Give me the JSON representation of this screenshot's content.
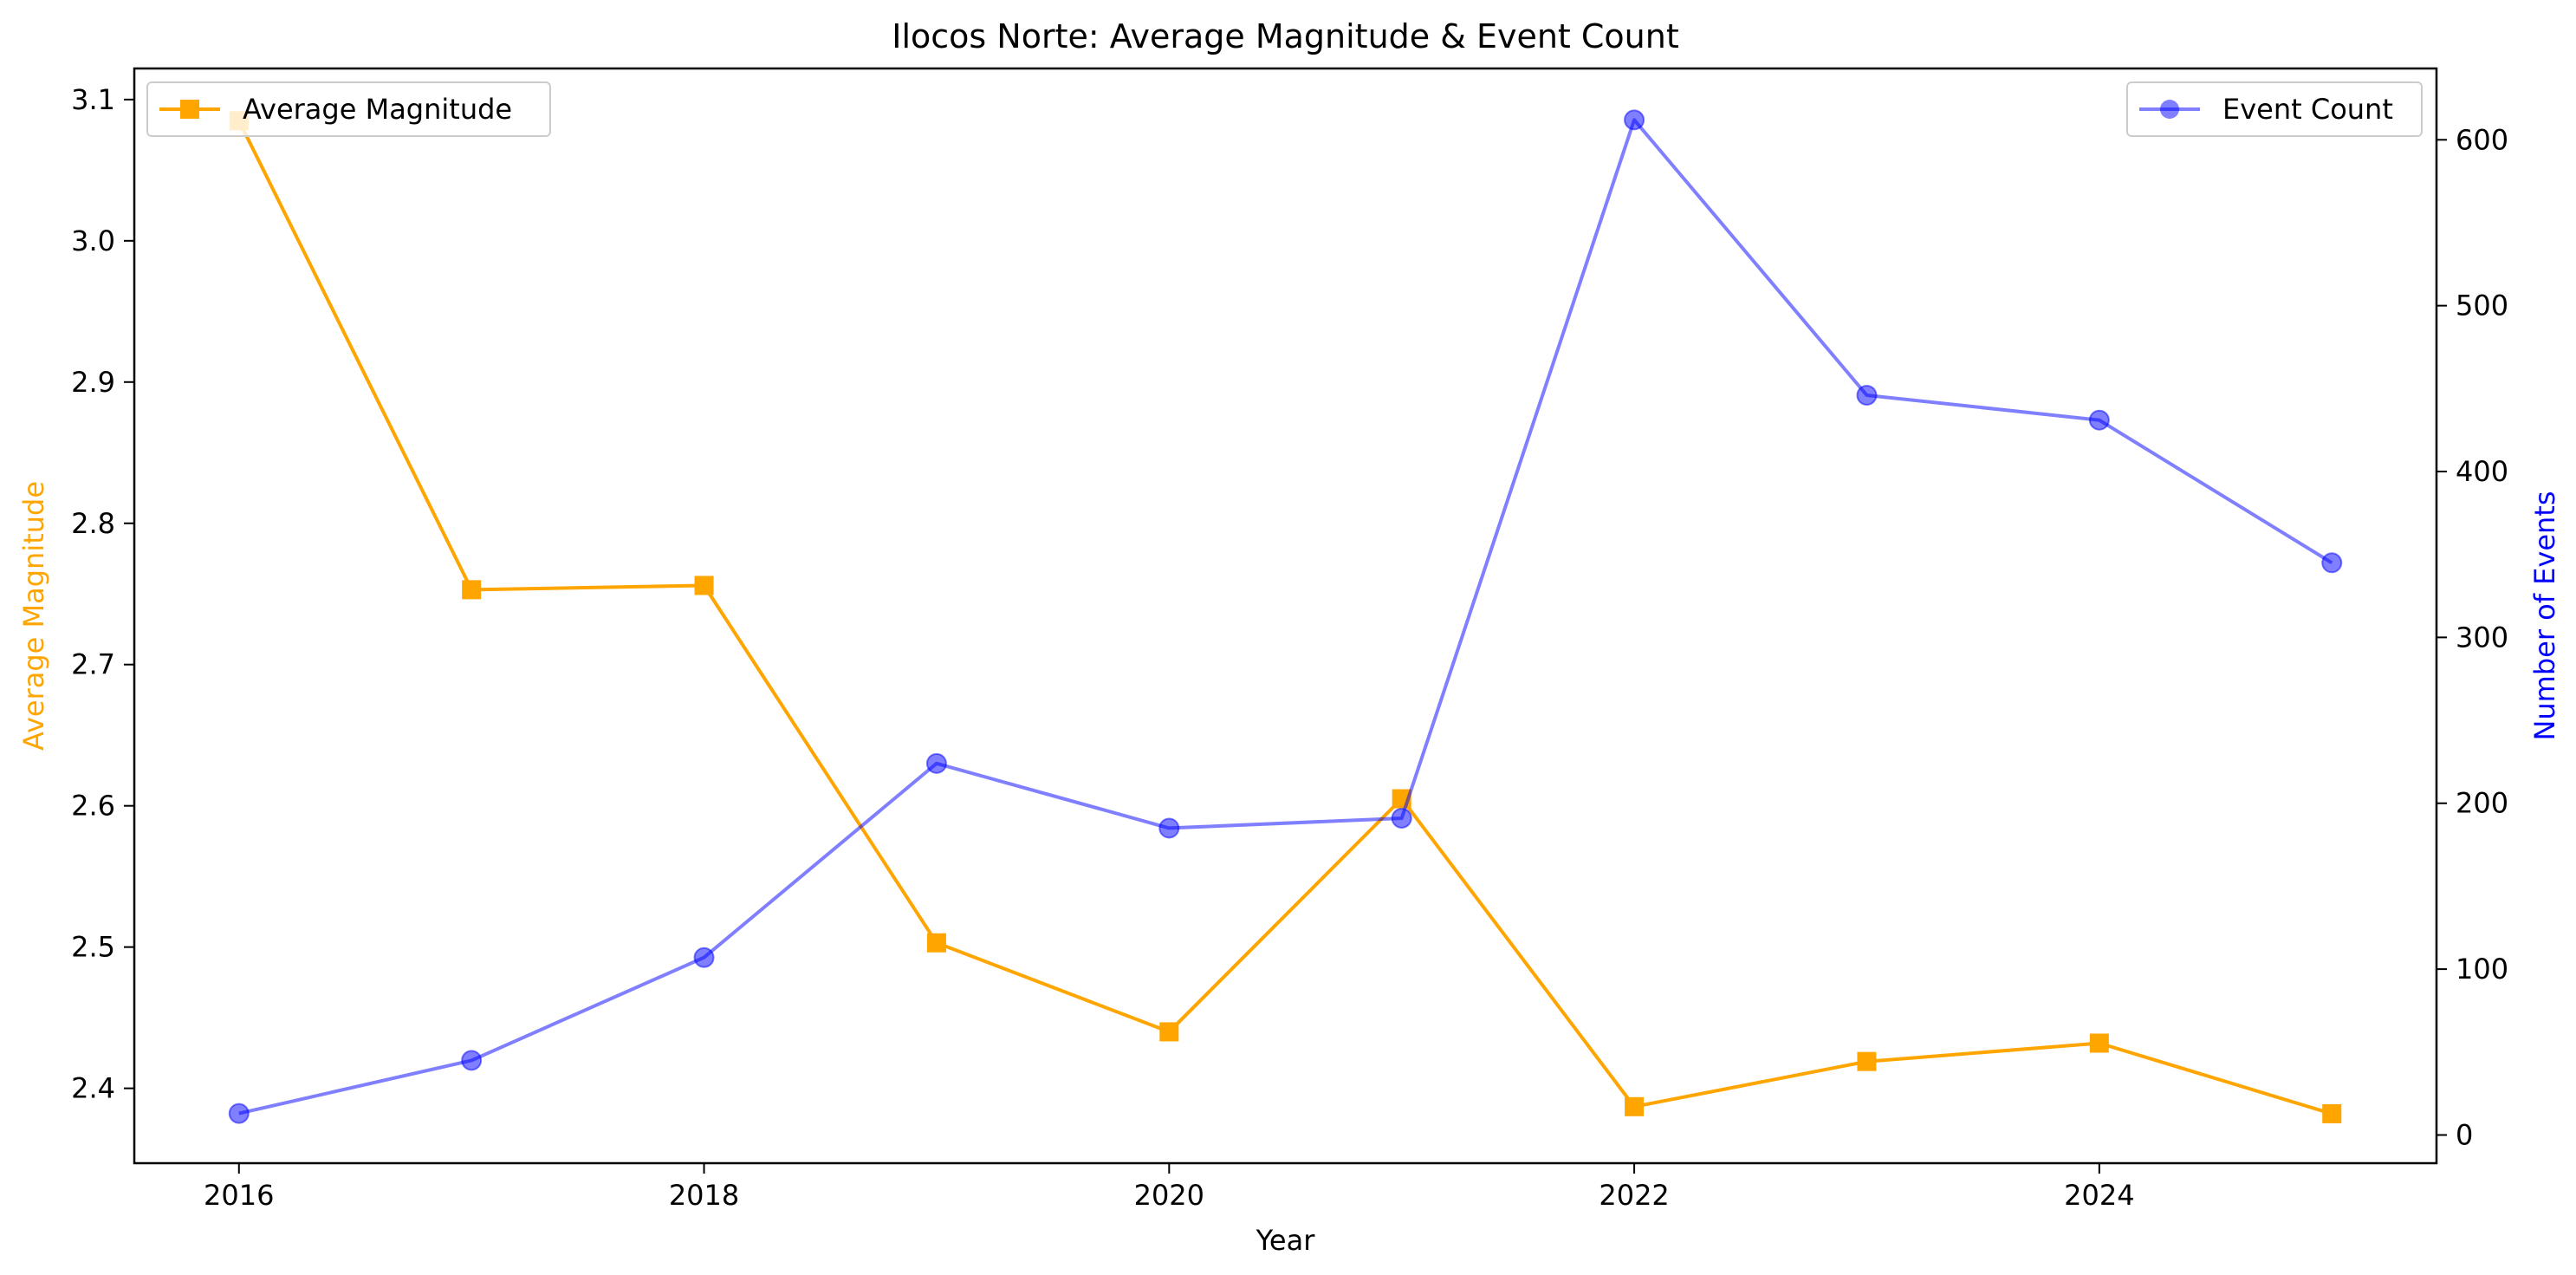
{
  "chart_data": {
    "type": "line",
    "title": "Ilocos Norte: Average Magnitude & Event Count",
    "xlabel": "Year",
    "ylabel_left": "Average Magnitude",
    "ylabel_right": "Number of Events",
    "x": [
      2016,
      2017,
      2018,
      2019,
      2020,
      2021,
      2022,
      2023,
      2024,
      2025
    ],
    "x_ticks": [
      "2016",
      "2018",
      "2020",
      "2022",
      "2024"
    ],
    "xlim": [
      2015.55,
      2025.45
    ],
    "ylim_left": [
      2.347,
      3.122
    ],
    "ylim_right": [
      -17,
      643
    ],
    "y_ticks_left": [
      "2.4",
      "2.5",
      "2.6",
      "2.7",
      "2.8",
      "2.9",
      "3.0",
      "3.1"
    ],
    "y_ticks_right": [
      "0",
      "100",
      "200",
      "300",
      "400",
      "500",
      "600"
    ],
    "grid": false,
    "series": [
      {
        "name": "Average Magnitude",
        "axis": "left",
        "color": "#ffa500",
        "marker": "square",
        "values": [
          3.085,
          2.753,
          2.756,
          2.503,
          2.44,
          2.605,
          2.387,
          2.419,
          2.432,
          2.382
        ],
        "legend_position": "upper left"
      },
      {
        "name": "Event Count",
        "axis": "right",
        "color": "#0000ff",
        "opacity": 0.5,
        "marker": "circle",
        "values": [
          13,
          45,
          107,
          224,
          185,
          191,
          612,
          446,
          431,
          345
        ],
        "legend_position": "upper right"
      }
    ]
  }
}
